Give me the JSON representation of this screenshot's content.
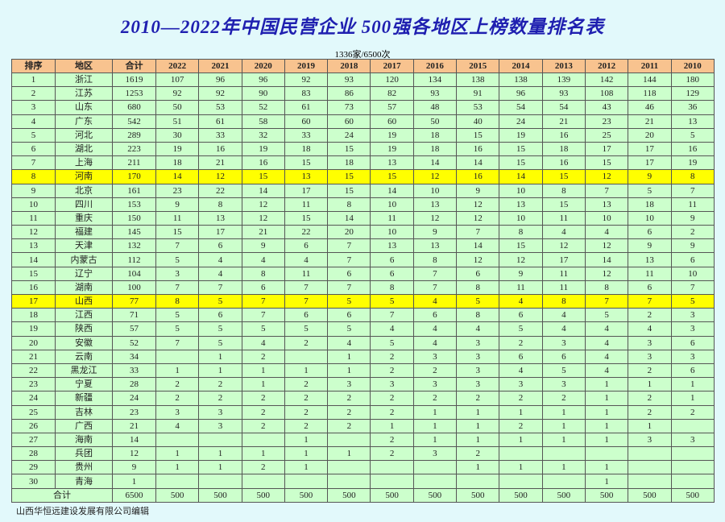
{
  "title": "2010—2022年中国民营企业 500强各地区上榜数量排名表",
  "subtitle": "1336家/6500次",
  "colors": {
    "background": "#e2f9fb",
    "header": "#f8c38f",
    "row": "#ccffcc",
    "highlight": "#ffff00",
    "title": "#1f1fb0"
  },
  "headers": [
    "排序",
    "地区",
    "合计",
    "2022",
    "2021",
    "2020",
    "2019",
    "2018",
    "2017",
    "2016",
    "2015",
    "2014",
    "2013",
    "2012",
    "2011",
    "2010"
  ],
  "highlighted_ranks": [
    "8",
    "17"
  ],
  "rows": [
    [
      "1",
      "浙江",
      "1619",
      "107",
      "96",
      "96",
      "92",
      "93",
      "120",
      "134",
      "138",
      "138",
      "139",
      "142",
      "144",
      "180"
    ],
    [
      "2",
      "江苏",
      "1253",
      "92",
      "92",
      "90",
      "83",
      "86",
      "82",
      "93",
      "91",
      "96",
      "93",
      "108",
      "118",
      "129"
    ],
    [
      "3",
      "山东",
      "680",
      "50",
      "53",
      "52",
      "61",
      "73",
      "57",
      "48",
      "53",
      "54",
      "54",
      "43",
      "46",
      "36"
    ],
    [
      "4",
      "广东",
      "542",
      "51",
      "61",
      "58",
      "60",
      "60",
      "60",
      "50",
      "40",
      "24",
      "21",
      "23",
      "21",
      "13"
    ],
    [
      "5",
      "河北",
      "289",
      "30",
      "33",
      "32",
      "33",
      "24",
      "19",
      "18",
      "15",
      "19",
      "16",
      "25",
      "20",
      "5"
    ],
    [
      "6",
      "湖北",
      "223",
      "19",
      "16",
      "19",
      "18",
      "15",
      "19",
      "18",
      "16",
      "15",
      "18",
      "17",
      "17",
      "16"
    ],
    [
      "7",
      "上海",
      "211",
      "18",
      "21",
      "16",
      "15",
      "18",
      "13",
      "14",
      "14",
      "15",
      "16",
      "15",
      "17",
      "19"
    ],
    [
      "8",
      "河南",
      "170",
      "14",
      "12",
      "15",
      "13",
      "15",
      "15",
      "12",
      "16",
      "14",
      "15",
      "12",
      "9",
      "8"
    ],
    [
      "9",
      "北京",
      "161",
      "23",
      "22",
      "14",
      "17",
      "15",
      "14",
      "10",
      "9",
      "10",
      "8",
      "7",
      "5",
      "7"
    ],
    [
      "10",
      "四川",
      "153",
      "9",
      "8",
      "12",
      "11",
      "8",
      "10",
      "13",
      "12",
      "13",
      "15",
      "13",
      "18",
      "11"
    ],
    [
      "11",
      "重庆",
      "150",
      "11",
      "13",
      "12",
      "15",
      "14",
      "11",
      "12",
      "12",
      "10",
      "11",
      "10",
      "10",
      "9"
    ],
    [
      "12",
      "福建",
      "145",
      "15",
      "17",
      "21",
      "22",
      "20",
      "10",
      "9",
      "7",
      "8",
      "4",
      "4",
      "6",
      "2"
    ],
    [
      "13",
      "天津",
      "132",
      "7",
      "6",
      "9",
      "6",
      "7",
      "13",
      "13",
      "14",
      "15",
      "12",
      "12",
      "9",
      "9"
    ],
    [
      "14",
      "内蒙古",
      "112",
      "5",
      "4",
      "4",
      "4",
      "7",
      "6",
      "8",
      "12",
      "12",
      "17",
      "14",
      "13",
      "6"
    ],
    [
      "15",
      "辽宁",
      "104",
      "3",
      "4",
      "8",
      "11",
      "6",
      "6",
      "7",
      "6",
      "9",
      "11",
      "12",
      "11",
      "10"
    ],
    [
      "16",
      "湖南",
      "100",
      "7",
      "7",
      "6",
      "7",
      "7",
      "8",
      "7",
      "8",
      "11",
      "11",
      "8",
      "6",
      "7"
    ],
    [
      "17",
      "山西",
      "77",
      "8",
      "5",
      "7",
      "7",
      "5",
      "5",
      "4",
      "5",
      "4",
      "8",
      "7",
      "7",
      "5"
    ],
    [
      "18",
      "江西",
      "71",
      "5",
      "6",
      "7",
      "6",
      "6",
      "7",
      "6",
      "8",
      "6",
      "4",
      "5",
      "2",
      "3"
    ],
    [
      "19",
      "陕西",
      "57",
      "5",
      "5",
      "5",
      "5",
      "5",
      "4",
      "4",
      "4",
      "5",
      "4",
      "4",
      "4",
      "3"
    ],
    [
      "20",
      "安徽",
      "52",
      "7",
      "5",
      "4",
      "2",
      "4",
      "5",
      "4",
      "3",
      "2",
      "3",
      "4",
      "3",
      "6"
    ],
    [
      "21",
      "云南",
      "34",
      "",
      "1",
      "2",
      "",
      "1",
      "2",
      "3",
      "3",
      "6",
      "6",
      "4",
      "3",
      "3"
    ],
    [
      "22",
      "黑龙江",
      "33",
      "1",
      "1",
      "1",
      "1",
      "1",
      "2",
      "2",
      "3",
      "4",
      "5",
      "4",
      "2",
      "6"
    ],
    [
      "23",
      "宁夏",
      "28",
      "2",
      "2",
      "1",
      "2",
      "3",
      "3",
      "3",
      "3",
      "3",
      "3",
      "1",
      "1",
      "1"
    ],
    [
      "24",
      "新疆",
      "24",
      "2",
      "2",
      "2",
      "2",
      "2",
      "2",
      "2",
      "2",
      "2",
      "2",
      "1",
      "2",
      "1"
    ],
    [
      "25",
      "吉林",
      "23",
      "3",
      "3",
      "2",
      "2",
      "2",
      "2",
      "1",
      "1",
      "1",
      "1",
      "1",
      "2",
      "2"
    ],
    [
      "26",
      "广西",
      "21",
      "4",
      "3",
      "2",
      "2",
      "2",
      "1",
      "1",
      "1",
      "2",
      "1",
      "1",
      "1",
      ""
    ],
    [
      "27",
      "海南",
      "14",
      "",
      "",
      "",
      "1",
      "",
      "2",
      "1",
      "1",
      "1",
      "1",
      "1",
      "3",
      "3"
    ],
    [
      "28",
      "兵团",
      "12",
      "1",
      "1",
      "1",
      "1",
      "1",
      "2",
      "3",
      "2",
      "",
      "",
      "",
      "",
      ""
    ],
    [
      "29",
      "贵州",
      "9",
      "1",
      "1",
      "2",
      "1",
      "",
      "",
      "",
      "1",
      "1",
      "1",
      "1",
      "",
      ""
    ],
    [
      "30",
      "青海",
      "1",
      "",
      "",
      "",
      "",
      "",
      "",
      "",
      "",
      "",
      "",
      "1",
      "",
      ""
    ]
  ],
  "total_row": {
    "label": "合计",
    "values": [
      "6500",
      "500",
      "500",
      "500",
      "500",
      "500",
      "500",
      "500",
      "500",
      "500",
      "500",
      "500",
      "500",
      "500"
    ]
  },
  "footer": "山西华恒远建设发展有限公司编辑"
}
